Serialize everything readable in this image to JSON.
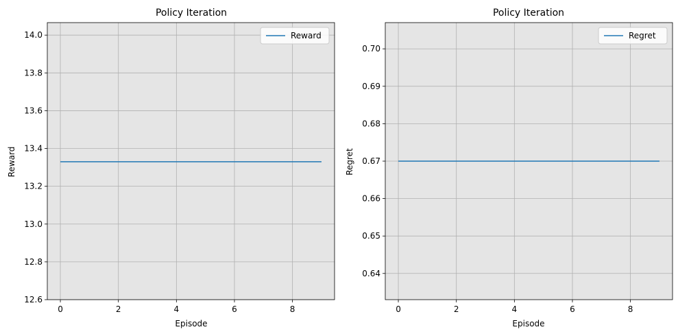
{
  "chart_data": [
    {
      "type": "line",
      "title": "Policy Iteration",
      "xlabel": "Episode",
      "ylabel": "Reward",
      "x": [
        0,
        1,
        2,
        3,
        4,
        5,
        6,
        7,
        8,
        9
      ],
      "series": [
        {
          "name": "Reward",
          "values": [
            13.33,
            13.33,
            13.33,
            13.33,
            13.33,
            13.33,
            13.33,
            13.33,
            13.33,
            13.33
          ],
          "color": "#1f77b4"
        }
      ],
      "xlim": [
        -0.45,
        9.45
      ],
      "ylim": [
        12.6,
        14.066
      ],
      "xticks": [
        0,
        2,
        4,
        6,
        8
      ],
      "xtick_labels": [
        "0",
        "2",
        "4",
        "6",
        "8"
      ],
      "yticks": [
        12.6,
        12.8,
        13.0,
        13.2,
        13.4,
        13.6,
        13.8,
        14.0
      ],
      "ytick_labels": [
        "12.6",
        "12.8",
        "13.0",
        "13.2",
        "13.4",
        "13.6",
        "13.8",
        "14.0"
      ],
      "grid": true,
      "legend": "top-right",
      "background": "#e5e5e5"
    },
    {
      "type": "line",
      "title": "Policy Iteration",
      "xlabel": "Episode",
      "ylabel": "Regret",
      "x": [
        0,
        1,
        2,
        3,
        4,
        5,
        6,
        7,
        8,
        9
      ],
      "series": [
        {
          "name": "Regret",
          "values": [
            0.67,
            0.67,
            0.67,
            0.67,
            0.67,
            0.67,
            0.67,
            0.67,
            0.67,
            0.67
          ],
          "color": "#1f77b4"
        }
      ],
      "xlim": [
        -0.45,
        9.45
      ],
      "ylim": [
        0.633,
        0.707
      ],
      "xticks": [
        0,
        2,
        4,
        6,
        8
      ],
      "xtick_labels": [
        "0",
        "2",
        "4",
        "6",
        "8"
      ],
      "yticks": [
        0.64,
        0.65,
        0.66,
        0.67,
        0.68,
        0.69,
        0.7
      ],
      "ytick_labels": [
        "0.64",
        "0.65",
        "0.66",
        "0.67",
        "0.68",
        "0.69",
        "0.70"
      ],
      "grid": true,
      "legend": "top-right",
      "background": "#e5e5e5"
    }
  ]
}
